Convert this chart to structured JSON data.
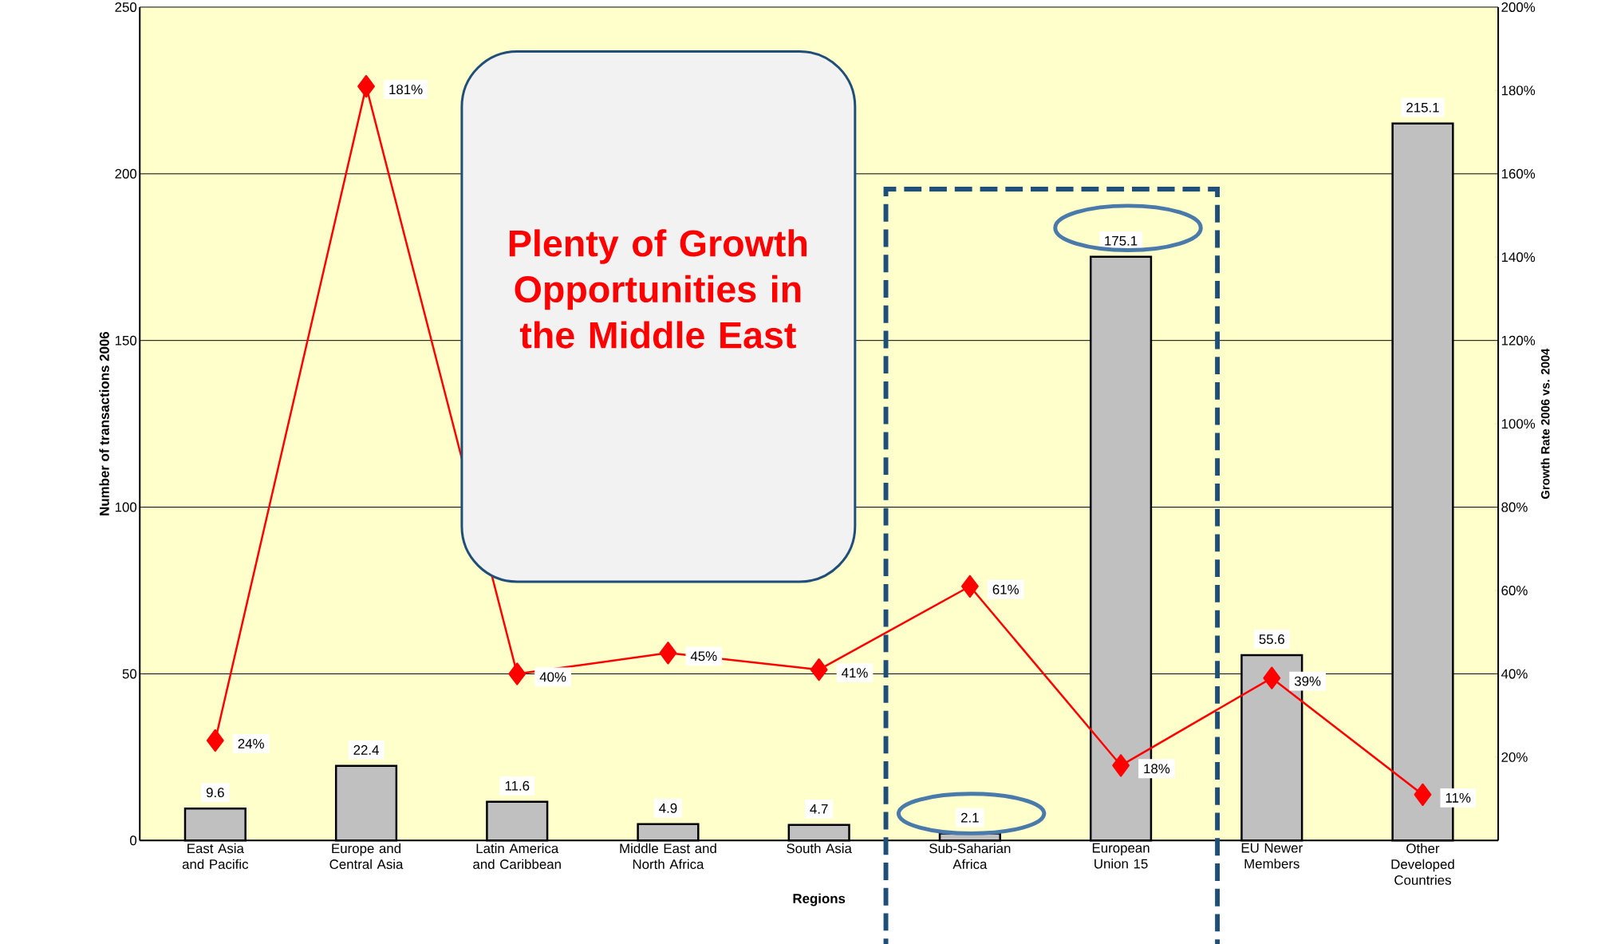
{
  "chart_data": {
    "type": "bar",
    "xlabel": "Regions",
    "ylabel": "Number of transactions 2006",
    "y2label": "Growth Rate 2006 vs. 2004",
    "categories": [
      "East Asia and Pacific",
      "Europe and Central Asia",
      "Latin America and Caribbean",
      "Middle East and North Africa",
      "South Asia",
      "Sub-Saharian Africa",
      "European Union 15",
      "EU Newer Members",
      "Other Developed Countries"
    ],
    "series": [
      {
        "type": "bar",
        "color": "#c0c0c0",
        "values": [
          9.6,
          22.4,
          11.6,
          4.9,
          4.7,
          2.1,
          175.1,
          55.6,
          215.1
        ],
        "value_labels": [
          "9.6",
          "22.4",
          "11.6",
          "4.9",
          "4.7",
          "2.1",
          "175.1",
          "55.6",
          "215.1"
        ]
      },
      {
        "type": "line",
        "axis": "y2",
        "color": "#ff0000",
        "values": [
          24,
          181,
          40,
          45,
          41,
          61,
          18,
          39,
          11
        ],
        "value_labels": [
          "24%",
          "181%",
          "40%",
          "45%",
          "41%",
          "61%",
          "18%",
          "39%",
          "11%"
        ]
      }
    ],
    "ylim": [
      0,
      250
    ],
    "yticks": [
      0,
      50,
      100,
      150,
      200,
      250
    ],
    "y2lim": [
      0,
      200
    ],
    "y2ticks": [
      {
        "value": 20,
        "label": "20%"
      },
      {
        "value": 40,
        "label": "40%"
      },
      {
        "value": 60,
        "label": "60%"
      },
      {
        "value": 80,
        "label": "80%"
      },
      {
        "value": 100,
        "label": "100%"
      },
      {
        "value": 120,
        "label": "120%"
      },
      {
        "value": 140,
        "label": "140%"
      },
      {
        "value": 160,
        "label": "160%"
      },
      {
        "value": 180,
        "label": "180%"
      },
      {
        "value": 200,
        "label": "200%"
      }
    ],
    "grid": "y",
    "marker": "diamond",
    "line_style": "solid",
    "annotations": [
      "Plenty of Growth Opportunities in the Middle East"
    ]
  }
}
